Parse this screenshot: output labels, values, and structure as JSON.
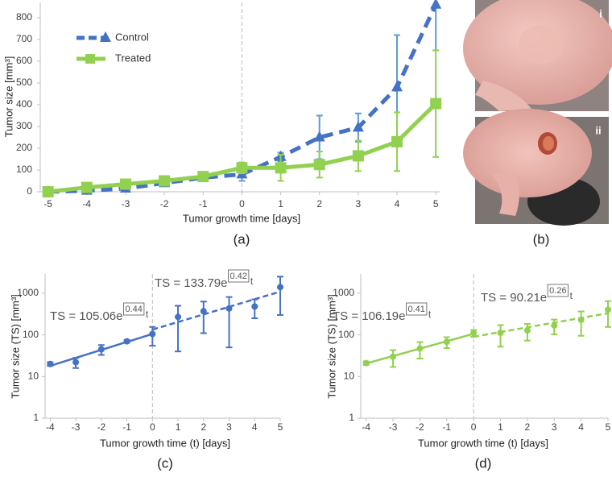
{
  "chart_data": [
    {
      "type": "line",
      "caption": "(a)",
      "xlabel": "Tumor growth time [days]",
      "ylabel": "Tumor size [mm³]",
      "x": [
        -5,
        -4,
        -3,
        -2,
        -1,
        0,
        1,
        2,
        3,
        4,
        5
      ],
      "xlim": [
        -5.2,
        5.1
      ],
      "xticks": [
        -5,
        -4,
        -3,
        -2,
        -1,
        0,
        1,
        2,
        3,
        4,
        5
      ],
      "ylim": [
        0,
        870
      ],
      "yticks": [
        0,
        100,
        200,
        300,
        400,
        500,
        600,
        700,
        800
      ],
      "vline": 0,
      "legend": "upper left",
      "series": [
        {
          "name": "Control",
          "color": "#4472c4",
          "error_color": "#5b9bd5",
          "dash": true,
          "marker": "triangle",
          "values": [
            0,
            5,
            15,
            40,
            65,
            80,
            160,
            250,
            295,
            480,
            860
          ],
          "errors": [
            null,
            null,
            null,
            null,
            null,
            30,
            20,
            100,
            65,
            240,
            210
          ]
        },
        {
          "name": "Treated",
          "color": "#92d050",
          "error_color": "#92d050",
          "dash": false,
          "marker": "square",
          "values": [
            0,
            20,
            35,
            50,
            70,
            110,
            110,
            125,
            165,
            230,
            405
          ],
          "errors": [
            null,
            5,
            8,
            10,
            15,
            25,
            60,
            60,
            70,
            135,
            245
          ]
        }
      ]
    },
    {
      "type": "scatter",
      "caption": "(c)",
      "xlabel": "Tumor growth time (t) [days]",
      "ylabel": "Tumor size (TS) [mm³]",
      "x": [
        -4,
        -3,
        -2,
        -1,
        0,
        1,
        2,
        3,
        4,
        5
      ],
      "xlim": [
        -4.2,
        5
      ],
      "xticks": [
        -4,
        -3,
        -2,
        -1,
        0,
        1,
        2,
        3,
        4,
        5
      ],
      "ylim": [
        1,
        2900
      ],
      "yticks": [
        1,
        10,
        100,
        1000
      ],
      "log_y": true,
      "vline": 0,
      "color": "#4472c4",
      "values": [
        20,
        22,
        45,
        70,
        105,
        270,
        370,
        430,
        480,
        1400
      ],
      "errors": [
        2,
        6,
        12,
        5,
        50,
        230,
        260,
        380,
        230,
        1100
      ],
      "fits": [
        {
          "text": "TS = 105.06e",
          "exponent": 0.44,
          "variable": "t",
          "a": 105.06,
          "x": [
            -4,
            0
          ],
          "dash": false
        },
        {
          "text": "TS = 133.79e",
          "exponent": 0.42,
          "variable": "t",
          "a": 133.79,
          "x": [
            0,
            5
          ],
          "dash": true
        }
      ]
    },
    {
      "type": "scatter",
      "caption": "(d)",
      "xlabel": "Tumor growth time (t) [days]",
      "ylabel": "Tumor size  (TS) [mm³]",
      "x": [
        -4,
        -3,
        -2,
        -1,
        0,
        1,
        2,
        3,
        4,
        5
      ],
      "xlim": [
        -4.2,
        5
      ],
      "xticks": [
        -4,
        -3,
        -2,
        -1,
        0,
        1,
        2,
        3,
        4,
        5
      ],
      "ylim": [
        1,
        2900
      ],
      "yticks": [
        1,
        10,
        100,
        1000
      ],
      "log_y": true,
      "vline": 0,
      "color": "#92d050",
      "values": [
        21,
        30,
        47,
        68,
        110,
        112,
        128,
        168,
        230,
        400
      ],
      "errors": [
        2,
        13,
        20,
        20,
        20,
        60,
        55,
        65,
        135,
        245
      ],
      "fits": [
        {
          "text": "TS = 106.19e",
          "exponent": 0.41,
          "variable": "t",
          "a": 106.19,
          "x": [
            -4,
            0
          ],
          "dash": false
        },
        {
          "text": "TS = 90.21e",
          "exponent": 0.26,
          "variable": "t",
          "a": 90.21,
          "x": [
            0,
            5
          ],
          "dash": true
        }
      ]
    }
  ],
  "photos": {
    "caption": "(b)",
    "labels": [
      "i",
      "ii"
    ]
  }
}
